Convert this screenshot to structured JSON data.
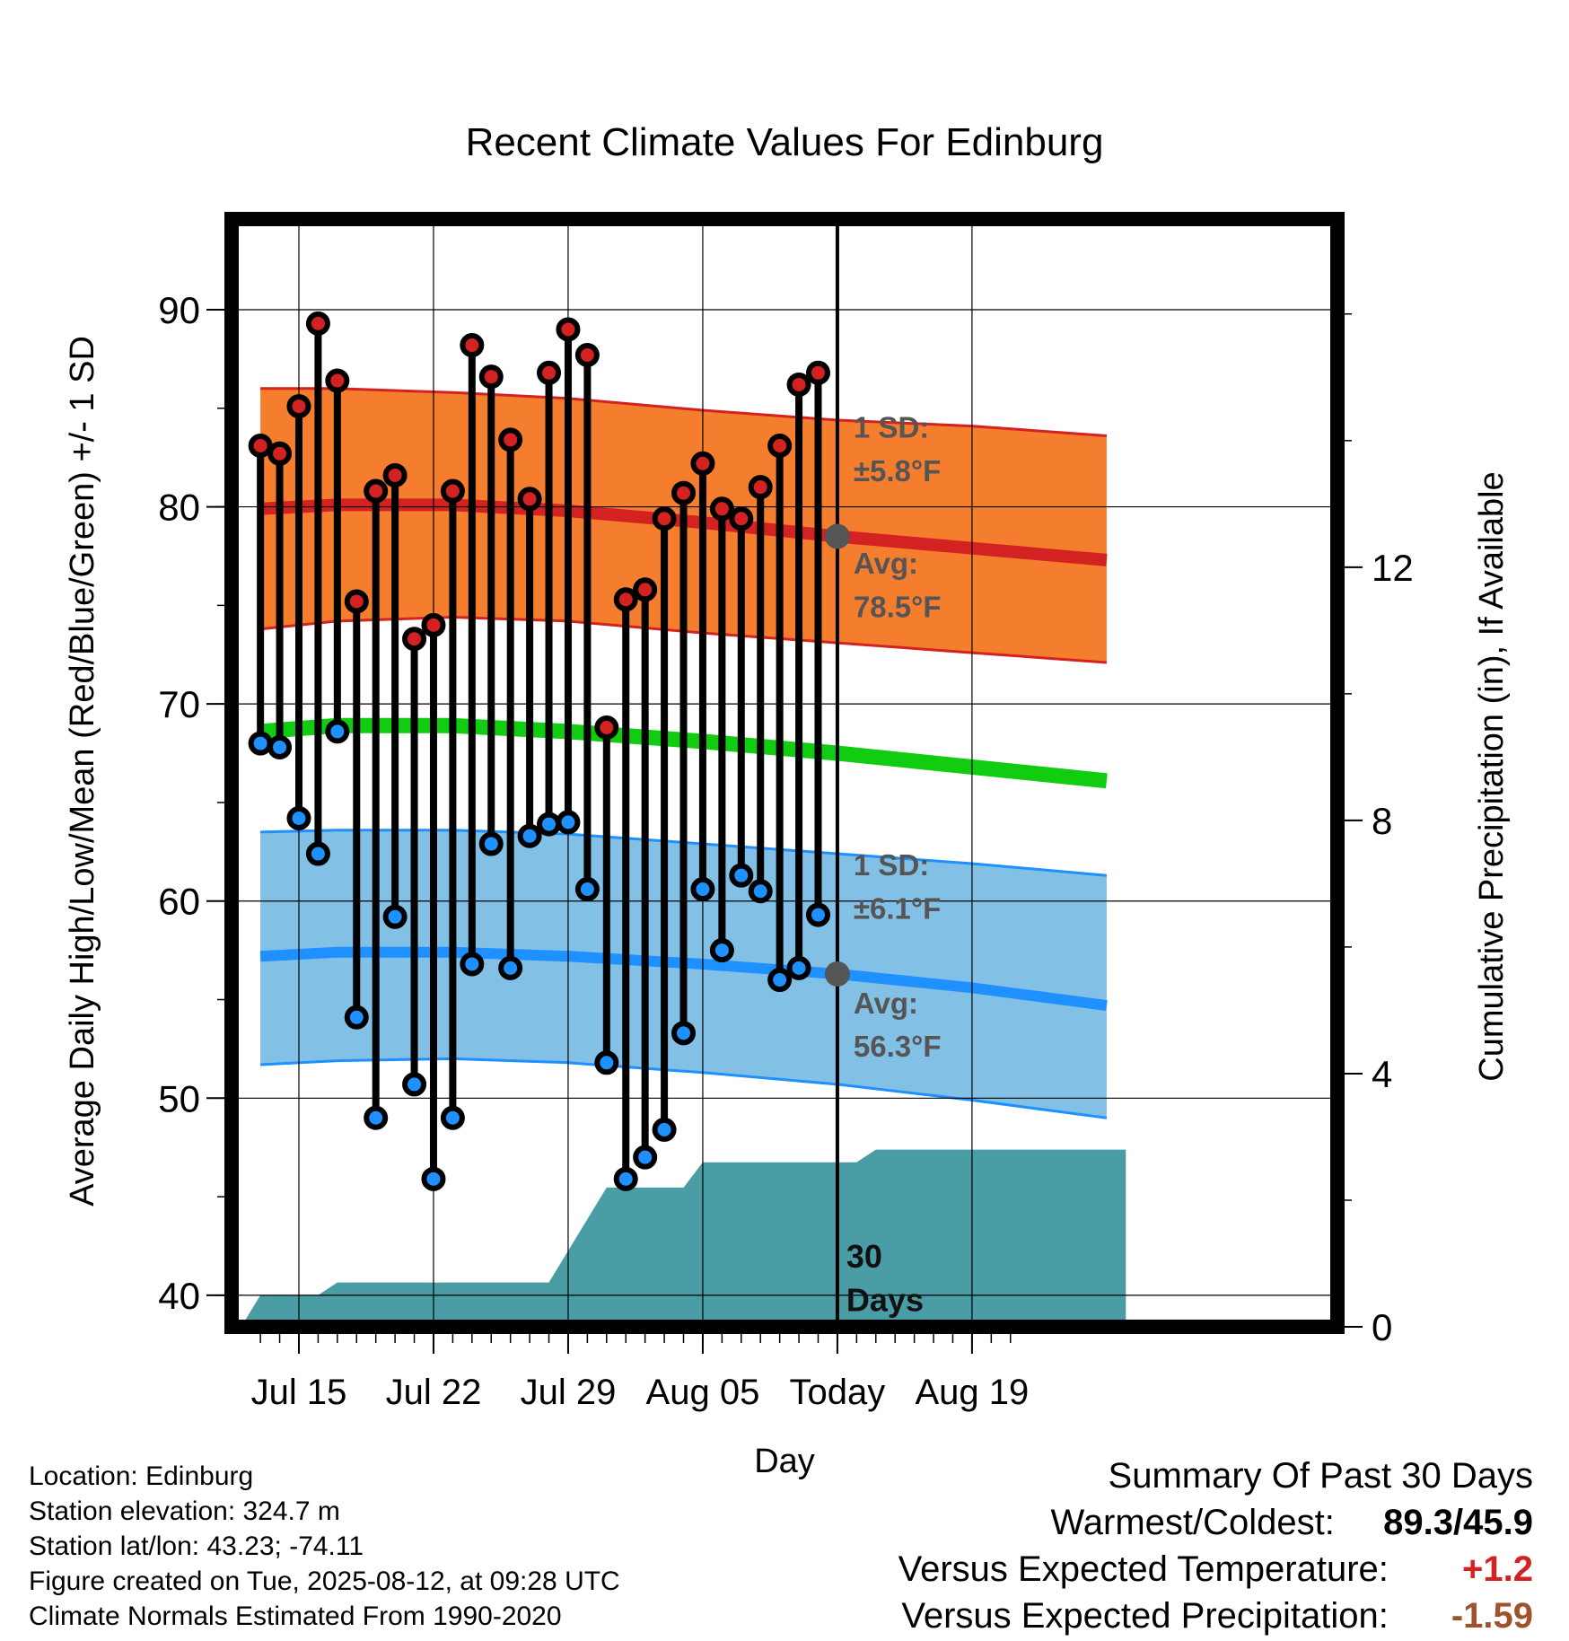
{
  "chart_data": {
    "type": "line",
    "title": "Recent Climate Values For Edinburg",
    "xlabel": "Day",
    "ylabel": "Average Daily High/Low/Mean (Red/Blue/Green) +/- 1 SD",
    "y2label": "Cumulative Precipitation (in), If Available",
    "ylim": [
      38.4,
      94.6
    ],
    "y2lim": [
      0,
      17.5
    ],
    "xlim": [
      -3.5,
      54.0
    ],
    "x_ticks": [
      {
        "day": 0,
        "label": "Jul 15"
      },
      {
        "day": 7,
        "label": "Jul 22"
      },
      {
        "day": 14,
        "label": "Jul 29"
      },
      {
        "day": 21,
        "label": "Aug 05"
      },
      {
        "day": 28,
        "label": "Today"
      },
      {
        "day": 35,
        "label": "Aug 19"
      }
    ],
    "y_ticks": [
      40,
      50,
      60,
      70,
      80,
      90
    ],
    "y2_ticks": [
      0,
      4,
      8,
      12
    ],
    "grid": true,
    "today_day": 28,
    "highs": [
      83.1,
      82.7,
      85.1,
      89.3,
      86.4,
      75.2,
      80.8,
      81.6,
      73.3,
      74.0,
      80.8,
      88.2,
      86.6,
      83.4,
      80.4,
      86.8,
      89.0,
      87.7,
      68.8,
      75.3,
      75.8,
      79.4,
      80.7,
      82.2,
      79.9,
      79.4,
      81.0,
      83.1,
      86.2,
      86.8
    ],
    "lows": [
      68.0,
      67.8,
      64.2,
      62.4,
      68.6,
      54.1,
      49.0,
      59.2,
      50.7,
      45.9,
      49.0,
      56.8,
      62.9,
      56.6,
      63.3,
      63.9,
      64.0,
      60.6,
      51.8,
      45.9,
      47.0,
      48.4,
      53.3,
      60.6,
      57.5,
      61.3,
      60.5,
      56.0,
      56.6,
      59.3
    ],
    "normals": {
      "days": [
        -2,
        2,
        8,
        14,
        21,
        28,
        35,
        42
      ],
      "high_avg": [
        79.9,
        80.1,
        80.1,
        79.8,
        79.2,
        78.5,
        77.9,
        77.3
      ],
      "high_plus_sd": [
        86.0,
        86.0,
        85.8,
        85.5,
        84.9,
        84.4,
        84.1,
        83.6
      ],
      "high_minus_sd": [
        73.8,
        74.2,
        74.4,
        74.2,
        73.6,
        73.1,
        72.6,
        72.1
      ],
      "mean_avg": [
        68.6,
        68.9,
        68.9,
        68.6,
        68.1,
        67.5,
        66.8,
        66.1
      ],
      "low_avg": [
        57.2,
        57.4,
        57.4,
        57.2,
        56.8,
        56.3,
        55.6,
        54.7
      ],
      "low_plus_sd": [
        63.5,
        63.6,
        63.6,
        63.4,
        62.9,
        62.4,
        61.9,
        61.3
      ],
      "low_minus_sd": [
        51.7,
        51.9,
        52.0,
        51.8,
        51.3,
        50.7,
        49.9,
        49.0
      ]
    },
    "precip_cumulative": {
      "days": [
        -3,
        -2,
        -1,
        1,
        2,
        3,
        4,
        5,
        8,
        9,
        10,
        11,
        12,
        13,
        16,
        17,
        18,
        20,
        21,
        22,
        23,
        24,
        25,
        29,
        30,
        31,
        32,
        33,
        34,
        35,
        36,
        37,
        38,
        39,
        40,
        41,
        42,
        43
      ],
      "values": [
        0,
        0.5,
        0.5,
        0.5,
        0.7,
        0.7,
        0.7,
        0.7,
        0.7,
        0.7,
        0.7,
        0.7,
        0.7,
        0.7,
        2.2,
        2.2,
        2.2,
        2.2,
        2.6,
        2.6,
        2.6,
        2.6,
        2.6,
        2.6,
        2.8,
        2.8,
        2.8,
        2.8,
        2.8,
        2.8,
        2.8,
        2.8,
        2.8,
        2.8,
        2.8,
        2.8,
        2.8,
        2.8
      ]
    },
    "series": [
      {
        "name": "Daily High",
        "color": "#d42121"
      },
      {
        "name": "Daily Low",
        "color": "#1e90ff"
      },
      {
        "name": "Mean",
        "color": "#11cc11"
      }
    ],
    "colors": {
      "high_band": "#f57d2e",
      "high_line": "#d42121",
      "mean_line": "#11cc11",
      "low_band": "#83c0e6",
      "low_line": "#1e90ff",
      "precip": "#4a9ca5",
      "annotation": "#555555"
    },
    "annotations": {
      "high_sd_label": "1 SD:",
      "high_sd_value": "±5.8°F",
      "high_avg_label": "Avg:",
      "high_avg_value": "78.5°F",
      "low_sd_label": "1 SD:",
      "low_sd_value": "±6.1°F",
      "low_avg_label": "Avg:",
      "low_avg_value": "56.3°F",
      "period_number": "30",
      "period_unit": "Days"
    }
  },
  "meta": {
    "location": "Location: Edinburg",
    "elevation": "Station elevation: 324.7 m",
    "latlon": "Station lat/lon: 43.23; -74.11",
    "created": "Figure created on Tue, 2025-08-12, at 09:28 UTC",
    "normals": "Climate Normals Estimated From 1990-2020"
  },
  "summary": {
    "title": "Summary Of Past 30 Days",
    "warm_cold_label": "Warmest/Coldest:",
    "warm_cold_value": "89.3/45.9",
    "temp_label": "Versus Expected Temperature:",
    "temp_value": "+1.2",
    "temp_color": "#d42121",
    "precip_label": "Versus Expected Precipitation:",
    "precip_value": "-1.59",
    "precip_color": "#a0522d"
  }
}
